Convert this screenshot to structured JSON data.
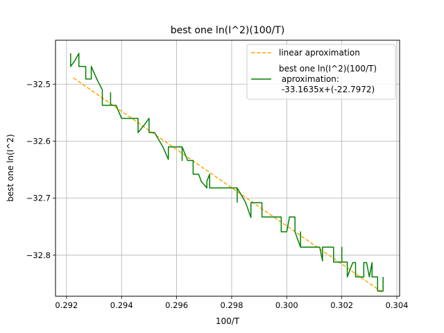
{
  "chart_data": {
    "type": "line",
    "title": "best one ln(I^2)(100/T)",
    "xlabel": "100/T",
    "ylabel": "best one ln(I^2)",
    "xlim": [
      0.2916,
      0.3041
    ],
    "ylim": [
      -32.872,
      -32.423
    ],
    "xticks": [
      0.292,
      0.294,
      0.296,
      0.298,
      0.3,
      0.302,
      0.304
    ],
    "xtick_labels": [
      "0.292",
      "0.294",
      "0.296",
      "0.298",
      "0.300",
      "0.302",
      "0.304"
    ],
    "yticks": [
      -32.5,
      -32.6,
      -32.7,
      -32.8
    ],
    "ytick_labels": [
      "−32.5",
      "−32.6",
      "−32.7",
      "−32.8"
    ],
    "grid": true,
    "legend_position": "top-right",
    "series": [
      {
        "name": "linear aproximation",
        "style": "dashed",
        "color": "#ffa500",
        "x": [
          0.29225,
          0.3035
        ],
        "y": [
          -32.489,
          -32.866
        ]
      },
      {
        "name": "best one ln(I^2)(100/T)\n aproximation:\n -33.1635x+(-22.7972)",
        "style": "solid",
        "color": "#008000",
        "x": [
          0.29215,
          0.29215,
          0.2923,
          0.29245,
          0.29245,
          0.2927,
          0.2927,
          0.2929,
          0.2929,
          0.2931,
          0.2933,
          0.2933,
          0.2936,
          0.2936,
          0.2936,
          0.2938,
          0.294,
          0.294,
          0.2943,
          0.2943,
          0.2946,
          0.2946,
          0.2948,
          0.295,
          0.295,
          0.2952,
          0.2955,
          0.2957,
          0.2957,
          0.2959,
          0.2962,
          0.2962,
          0.2962,
          0.2964,
          0.2966,
          0.2966,
          0.2968,
          0.2969,
          0.2971,
          0.2971,
          0.2972,
          0.2972,
          0.2976,
          0.298,
          0.2982,
          0.2982,
          0.2982,
          0.2985,
          0.2987,
          0.2987,
          0.2989,
          0.2989,
          0.2991,
          0.2991,
          0.2994,
          0.2996,
          0.2996,
          0.2998,
          0.2998,
          0.2998,
          0.3,
          0.3001,
          0.3003,
          0.3003,
          0.3005,
          0.3005,
          0.3005,
          0.3009,
          0.3012,
          0.3013,
          0.3013,
          0.3016,
          0.3017,
          0.3017,
          0.302,
          0.302,
          0.302,
          0.3022,
          0.3022,
          0.3024,
          0.3025,
          0.3025,
          0.3027,
          0.3028,
          0.3028,
          0.3029,
          0.303,
          0.3031,
          0.3031,
          0.3032,
          0.3033,
          0.3033,
          0.3035,
          0.3035
        ],
        "y": [
          -32.446,
          -32.469,
          -32.459,
          -32.446,
          -32.469,
          -32.469,
          -32.491,
          -32.491,
          -32.469,
          -32.491,
          -32.51,
          -32.537,
          -32.537,
          -32.515,
          -32.537,
          -32.537,
          -32.56,
          -32.56,
          -32.56,
          -32.56,
          -32.56,
          -32.585,
          -32.573,
          -32.56,
          -32.585,
          -32.585,
          -32.61,
          -32.632,
          -32.61,
          -32.61,
          -32.61,
          -32.634,
          -32.61,
          -32.634,
          -32.634,
          -32.658,
          -32.658,
          -32.671,
          -32.682,
          -32.67,
          -32.658,
          -32.682,
          -32.682,
          -32.682,
          -32.682,
          -32.707,
          -32.682,
          -32.707,
          -32.734,
          -32.708,
          -32.708,
          -32.708,
          -32.708,
          -32.733,
          -32.733,
          -32.733,
          -32.733,
          -32.733,
          -32.759,
          -32.759,
          -32.759,
          -32.733,
          -32.733,
          -32.759,
          -32.786,
          -32.759,
          -32.786,
          -32.786,
          -32.786,
          -32.81,
          -32.786,
          -32.786,
          -32.786,
          -32.812,
          -32.812,
          -32.786,
          -32.812,
          -32.812,
          -32.838,
          -32.813,
          -32.813,
          -32.838,
          -32.838,
          -32.838,
          -32.813,
          -32.813,
          -32.838,
          -32.813,
          -32.838,
          -32.838,
          -32.838,
          -32.863,
          -32.863,
          -32.838
        ]
      }
    ]
  }
}
